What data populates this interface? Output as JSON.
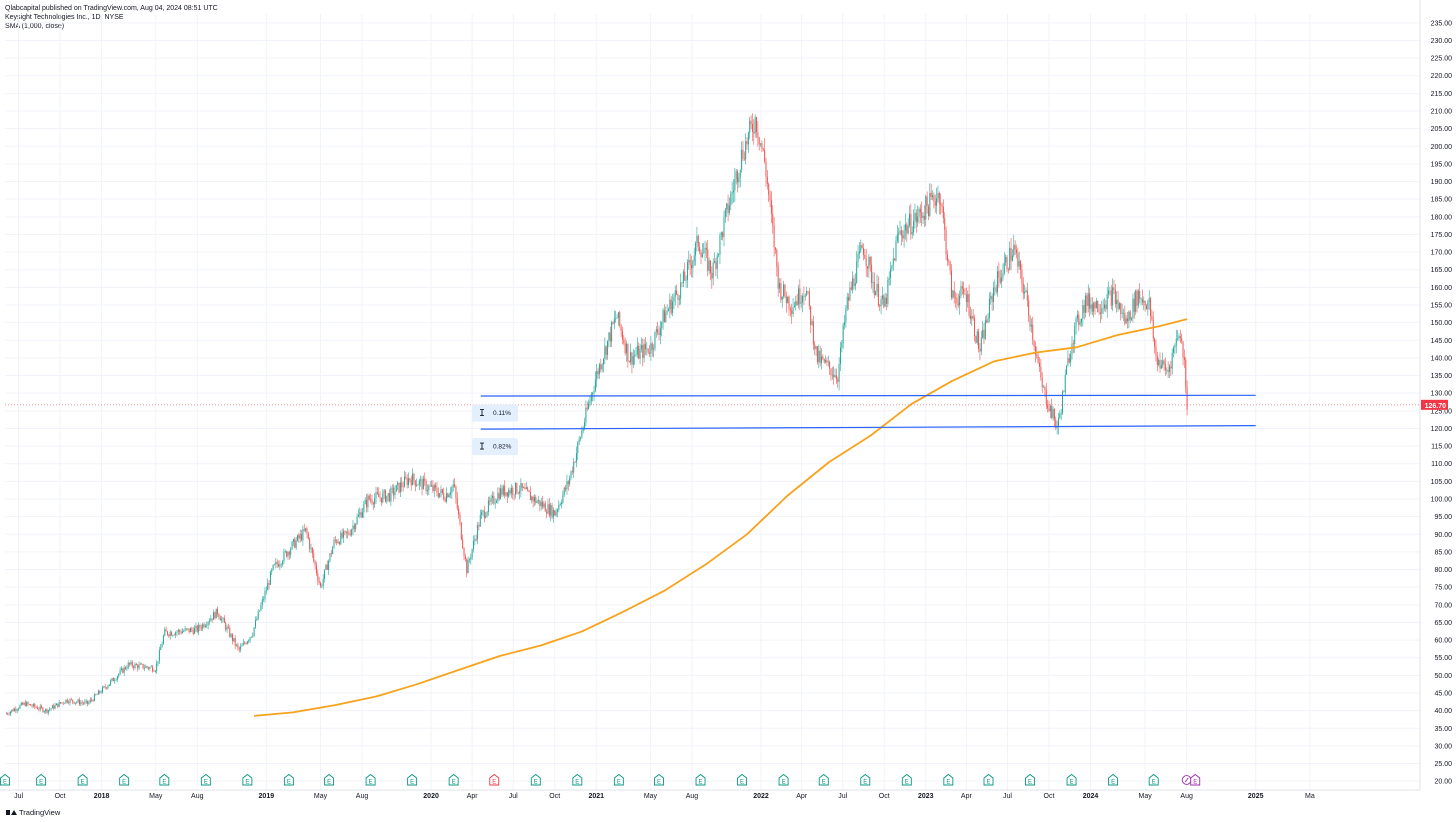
{
  "header": {
    "publish_line": "Qlabcapital published on TradingView.com, Aug 04, 2024 08:51 UTC",
    "symbol_line": "Keysight Technologies Inc., 1D, NYSE",
    "indicator_line": "SMA (1,000, close)"
  },
  "footer": {
    "brand": "TradingView"
  },
  "colors": {
    "up": "#26a69a",
    "down": "#ef5350",
    "sma": "#f7a21b",
    "trendline": "#2962ff",
    "price_badge": "#f23645",
    "earnings": "#089981",
    "earnings_red": "#f23645",
    "earnings_purple": "#9c27b0"
  },
  "chart_data": {
    "type": "candlestick",
    "symbol": "Keysight Technologies Inc.",
    "interval": "1D",
    "exchange": "NYSE",
    "y_axis": {
      "ylim": [
        17.5,
        237.5
      ],
      "ticks": [
        20,
        25,
        30,
        35,
        40,
        45,
        50,
        55,
        60,
        65,
        70,
        75,
        80,
        85,
        90,
        95,
        100,
        105,
        110,
        115,
        120,
        125,
        130,
        135,
        140,
        145,
        150,
        155,
        160,
        165,
        170,
        175,
        180,
        185,
        190,
        195,
        200,
        205,
        210,
        215,
        220,
        225,
        230,
        235
      ],
      "tick_format": "2dec",
      "position": "right"
    },
    "x_axis": {
      "range": [
        "2017-06-01",
        "2025-12-31"
      ],
      "ticks": [
        {
          "date": "2017-07-01",
          "label": "Jul",
          "bold": false
        },
        {
          "date": "2017-10-01",
          "label": "Oct",
          "bold": false
        },
        {
          "date": "2018-01-01",
          "label": "2018",
          "bold": true
        },
        {
          "date": "2018-05-01",
          "label": "May",
          "bold": false
        },
        {
          "date": "2018-08-01",
          "label": "Aug",
          "bold": false
        },
        {
          "date": "2019-01-01",
          "label": "2019",
          "bold": true
        },
        {
          "date": "2019-05-01",
          "label": "May",
          "bold": false
        },
        {
          "date": "2019-08-01",
          "label": "Aug",
          "bold": false
        },
        {
          "date": "2020-01-01",
          "label": "2020",
          "bold": true
        },
        {
          "date": "2020-04-01",
          "label": "Apr",
          "bold": false
        },
        {
          "date": "2020-07-01",
          "label": "Jul",
          "bold": false
        },
        {
          "date": "2020-10-01",
          "label": "Oct",
          "bold": false
        },
        {
          "date": "2021-01-01",
          "label": "2021",
          "bold": true
        },
        {
          "date": "2021-05-01",
          "label": "May",
          "bold": false
        },
        {
          "date": "2021-08-01",
          "label": "Aug",
          "bold": false
        },
        {
          "date": "2022-01-01",
          "label": "2022",
          "bold": true
        },
        {
          "date": "2022-04-01",
          "label": "Apr",
          "bold": false
        },
        {
          "date": "2022-07-01",
          "label": "Jul",
          "bold": false
        },
        {
          "date": "2022-10-01",
          "label": "Oct",
          "bold": false
        },
        {
          "date": "2023-01-01",
          "label": "2023",
          "bold": true
        },
        {
          "date": "2023-04-01",
          "label": "Apr",
          "bold": false
        },
        {
          "date": "2023-07-01",
          "label": "Jul",
          "bold": false
        },
        {
          "date": "2023-10-01",
          "label": "Oct",
          "bold": false
        },
        {
          "date": "2024-01-01",
          "label": "2024",
          "bold": true
        },
        {
          "date": "2024-05-01",
          "label": "May",
          "bold": false
        },
        {
          "date": "2024-08-01",
          "label": "Aug",
          "bold": false
        },
        {
          "date": "2025-01-01",
          "label": "2025",
          "bold": true
        },
        {
          "date": "2025-05-01",
          "label": "Ma",
          "bold": false
        }
      ]
    },
    "price_path": [
      [
        "2017-06-01",
        39
      ],
      [
        "2017-07-15",
        42
      ],
      [
        "2017-09-01",
        40
      ],
      [
        "2017-10-15",
        43
      ],
      [
        "2017-12-01",
        42
      ],
      [
        "2018-01-20",
        48
      ],
      [
        "2018-03-01",
        53
      ],
      [
        "2018-05-01",
        52
      ],
      [
        "2018-05-20",
        62
      ],
      [
        "2018-08-01",
        63
      ],
      [
        "2018-09-15",
        68
      ],
      [
        "2018-11-01",
        57
      ],
      [
        "2018-12-01",
        62
      ],
      [
        "2019-01-15",
        80
      ],
      [
        "2019-03-01",
        87
      ],
      [
        "2019-03-30",
        91
      ],
      [
        "2019-05-01",
        75
      ],
      [
        "2019-06-01",
        88
      ],
      [
        "2019-07-01",
        90
      ],
      [
        "2019-08-15",
        100
      ],
      [
        "2019-10-01",
        101
      ],
      [
        "2019-11-15",
        106
      ],
      [
        "2019-12-15",
        104
      ],
      [
        "2020-02-01",
        101
      ],
      [
        "2020-02-20",
        104
      ],
      [
        "2020-03-20",
        80
      ],
      [
        "2020-04-20",
        95
      ],
      [
        "2020-06-01",
        102
      ],
      [
        "2020-07-15",
        103
      ],
      [
        "2020-08-15",
        100
      ],
      [
        "2020-10-01",
        96
      ],
      [
        "2020-11-01",
        105
      ],
      [
        "2021-01-01",
        135
      ],
      [
        "2021-02-15",
        152
      ],
      [
        "2021-03-15",
        140
      ],
      [
        "2021-05-01",
        143
      ],
      [
        "2021-06-01",
        152
      ],
      [
        "2021-07-15",
        162
      ],
      [
        "2021-08-15",
        173
      ],
      [
        "2021-09-15",
        164
      ],
      [
        "2021-10-15",
        180
      ],
      [
        "2021-11-20",
        198
      ],
      [
        "2021-12-20",
        208
      ],
      [
        "2022-01-10",
        195
      ],
      [
        "2022-02-10",
        160
      ],
      [
        "2022-03-10",
        155
      ],
      [
        "2022-04-10",
        160
      ],
      [
        "2022-05-05",
        140
      ],
      [
        "2022-06-20",
        135
      ],
      [
        "2022-07-10",
        155
      ],
      [
        "2022-08-15",
        172
      ],
      [
        "2022-09-10",
        160
      ],
      [
        "2022-10-01",
        154
      ],
      [
        "2022-11-01",
        175
      ],
      [
        "2022-12-15",
        180
      ],
      [
        "2023-02-01",
        187
      ],
      [
        "2023-03-01",
        157
      ],
      [
        "2023-04-01",
        158
      ],
      [
        "2023-05-01",
        142
      ],
      [
        "2023-06-01",
        160
      ],
      [
        "2023-07-15",
        171
      ],
      [
        "2023-08-15",
        155
      ],
      [
        "2023-09-15",
        132
      ],
      [
        "2023-10-20",
        120
      ],
      [
        "2023-11-20",
        145
      ],
      [
        "2023-12-20",
        156
      ],
      [
        "2024-01-20",
        155
      ],
      [
        "2024-02-20",
        158
      ],
      [
        "2024-03-20",
        150
      ],
      [
        "2024-04-15",
        158
      ],
      [
        "2024-05-10",
        155
      ],
      [
        "2024-05-25",
        140
      ],
      [
        "2024-06-20",
        136
      ],
      [
        "2024-07-15",
        148
      ],
      [
        "2024-07-28",
        138
      ],
      [
        "2024-08-02",
        126.7
      ]
    ],
    "sma": {
      "name": "SMA (1,000, close)",
      "points": [
        [
          "2018-12-05",
          38.5
        ],
        [
          "2019-03-01",
          39.5
        ],
        [
          "2019-06-01",
          41.5
        ],
        [
          "2019-09-01",
          44.0
        ],
        [
          "2019-12-01",
          47.5
        ],
        [
          "2020-03-01",
          51.5
        ],
        [
          "2020-06-01",
          55.5
        ],
        [
          "2020-09-01",
          58.5
        ],
        [
          "2020-12-01",
          62.5
        ],
        [
          "2021-03-01",
          68.0
        ],
        [
          "2021-06-01",
          74.0
        ],
        [
          "2021-09-01",
          81.5
        ],
        [
          "2021-12-01",
          90.0
        ],
        [
          "2022-03-01",
          101.0
        ],
        [
          "2022-06-01",
          110.5
        ],
        [
          "2022-09-01",
          118.0
        ],
        [
          "2022-12-01",
          127.0
        ],
        [
          "2023-03-01",
          133.5
        ],
        [
          "2023-06-01",
          139.0
        ],
        [
          "2023-09-01",
          141.5
        ],
        [
          "2023-12-01",
          143.0
        ],
        [
          "2024-03-01",
          146.5
        ],
        [
          "2024-06-01",
          149.0
        ],
        [
          "2024-08-02",
          151.0
        ]
      ]
    },
    "last_price": 126.7,
    "last_price_label": "126.70",
    "trendlines": [
      {
        "name": "upper-support",
        "from": [
          "2020-04-20",
          129.2
        ],
        "to": [
          "2025-01-01",
          129.4
        ]
      },
      {
        "name": "lower-support",
        "from": [
          "2020-04-20",
          119.8
        ],
        "to": [
          "2025-01-01",
          120.8
        ]
      }
    ],
    "measure_labels": [
      {
        "text": "0.11%",
        "date": "2020-05-15",
        "price": 124.5
      },
      {
        "text": "0.82%",
        "date": "2020-05-15",
        "price": 115.0
      }
    ],
    "earnings_markers": [
      {
        "date": "2017-06-01",
        "type": "green"
      },
      {
        "date": "2017-08-20",
        "type": "green"
      },
      {
        "date": "2017-11-20",
        "type": "green"
      },
      {
        "date": "2018-02-20",
        "type": "green"
      },
      {
        "date": "2018-05-20",
        "type": "green"
      },
      {
        "date": "2018-08-20",
        "type": "green"
      },
      {
        "date": "2018-11-20",
        "type": "green"
      },
      {
        "date": "2019-02-20",
        "type": "green"
      },
      {
        "date": "2019-05-20",
        "type": "green"
      },
      {
        "date": "2019-08-20",
        "type": "green"
      },
      {
        "date": "2019-11-20",
        "type": "green"
      },
      {
        "date": "2020-02-20",
        "type": "green"
      },
      {
        "date": "2020-05-20",
        "type": "red"
      },
      {
        "date": "2020-08-20",
        "type": "green"
      },
      {
        "date": "2020-11-20",
        "type": "green"
      },
      {
        "date": "2021-02-20",
        "type": "green"
      },
      {
        "date": "2021-05-20",
        "type": "green"
      },
      {
        "date": "2021-08-20",
        "type": "green"
      },
      {
        "date": "2021-11-20",
        "type": "green"
      },
      {
        "date": "2022-02-20",
        "type": "green"
      },
      {
        "date": "2022-05-20",
        "type": "green"
      },
      {
        "date": "2022-08-20",
        "type": "green"
      },
      {
        "date": "2022-11-20",
        "type": "green"
      },
      {
        "date": "2023-02-20",
        "type": "green"
      },
      {
        "date": "2023-05-20",
        "type": "green"
      },
      {
        "date": "2023-08-20",
        "type": "green"
      },
      {
        "date": "2023-11-20",
        "type": "green"
      },
      {
        "date": "2024-02-20",
        "type": "green"
      },
      {
        "date": "2024-05-20",
        "type": "green"
      },
      {
        "date": "2024-08-01",
        "type": "split"
      },
      {
        "date": "2024-08-20",
        "type": "purple"
      }
    ]
  }
}
